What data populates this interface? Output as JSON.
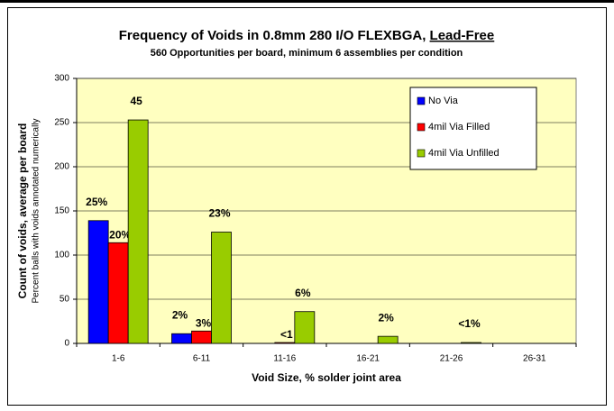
{
  "chart_data": {
    "type": "bar",
    "title": "Frequency of Voids in 0.8mm 280 I/O FLEXBGA,",
    "title_emphasis": "Lead-Free",
    "subtitle": "560 Opportunities per board, minimum 6 assemblies per condition",
    "y_label": "Count of voids, average per board",
    "y_label_secondary": "Percent balls with voids annotated numerically",
    "x_label": "Void Size, % solder joint area",
    "categories": [
      "1-6",
      "6-11",
      "11-16",
      "16-21",
      "21-26",
      "26-31"
    ],
    "series": [
      {
        "name": "No Via",
        "color": "#0000ff",
        "label_color": "#0033cc",
        "values": [
          139,
          11,
          0,
          0,
          0,
          0
        ],
        "annotations": [
          "25%",
          "2%",
          null,
          null,
          null,
          null
        ]
      },
      {
        "name": "4mil Via Filled",
        "color": "#ff0000",
        "label_color": "#ff0000",
        "values": [
          114,
          14,
          1,
          0,
          0,
          0
        ],
        "annotations": [
          "20%",
          "3%",
          "<1",
          null,
          null,
          null
        ]
      },
      {
        "name": "4mil Via Unfilled",
        "color": "#99cc00",
        "label_color": "#339900",
        "values": [
          253,
          126,
          36,
          8,
          1,
          0
        ],
        "annotations": [
          "45",
          "23%",
          "6%",
          "2%",
          "<1%",
          null
        ]
      }
    ],
    "ylim": [
      0,
      300
    ],
    "yticks": [
      0,
      50,
      100,
      150,
      200,
      250,
      300
    ],
    "grid": true,
    "legend": "top-right",
    "plot_color": "#ffffc0"
  }
}
